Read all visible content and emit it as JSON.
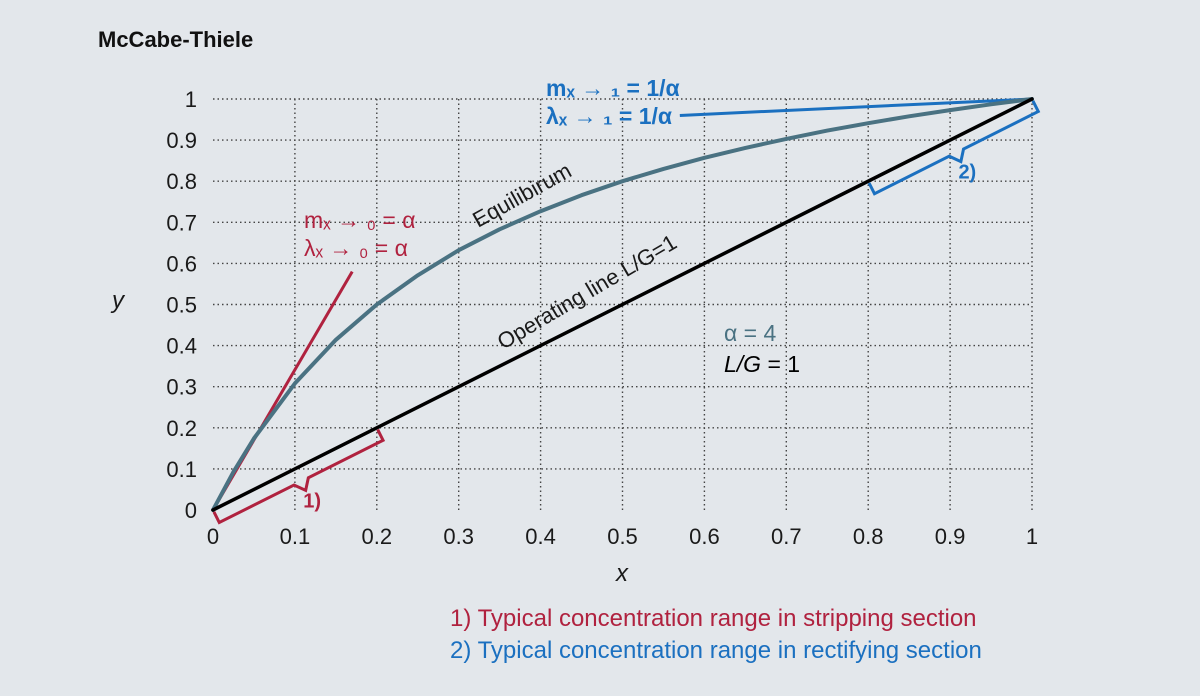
{
  "chart_data": {
    "type": "line",
    "title": "McCabe-Thiele",
    "xlabel": "x",
    "ylabel": "y",
    "xlim": [
      0,
      1
    ],
    "ylim": [
      0,
      1
    ],
    "grid": true,
    "x_ticks": [
      "0",
      "0.1",
      "0.2",
      "0.3",
      "0.4",
      "0.5",
      "0.6",
      "0.7",
      "0.8",
      "0.9",
      "1"
    ],
    "y_ticks": [
      "0",
      "0.1",
      "0.2",
      "0.3",
      "0.4",
      "0.5",
      "0.6",
      "0.7",
      "0.8",
      "0.9",
      "1"
    ],
    "alpha": 4,
    "L_over_G": 1,
    "series": [
      {
        "name": "Equilibirum",
        "color": "#4a7282",
        "x": [
          0,
          0.025,
          0.05,
          0.1,
          0.15,
          0.2,
          0.25,
          0.3,
          0.35,
          0.4,
          0.45,
          0.5,
          0.55,
          0.6,
          0.65,
          0.7,
          0.75,
          0.8,
          0.85,
          0.9,
          0.95,
          1
        ],
        "y": [
          0,
          0.093,
          0.174,
          0.308,
          0.414,
          0.5,
          0.571,
          0.632,
          0.683,
          0.727,
          0.766,
          0.8,
          0.83,
          0.857,
          0.881,
          0.903,
          0.923,
          0.941,
          0.958,
          0.973,
          0.987,
          1
        ]
      },
      {
        "name": "Operating line L/G=1",
        "color": "#000000",
        "x": [
          0,
          1
        ],
        "y": [
          0,
          1
        ]
      }
    ],
    "tangents": [
      {
        "color": "#b0223f",
        "x": [
          0,
          0.17
        ],
        "y": [
          0,
          0.58
        ]
      },
      {
        "color": "#1b70c0",
        "x": [
          0.57,
          1
        ],
        "y": [
          0.96,
          1
        ]
      }
    ],
    "brackets": [
      {
        "color": "#b0223f",
        "from": [
          0,
          0
        ],
        "to": [
          0.2,
          0.2
        ],
        "label": "1)"
      },
      {
        "color": "#1b70c0",
        "from": [
          0.8,
          0.8
        ],
        "to": [
          1,
          1
        ],
        "label": "2)"
      }
    ],
    "annotations": {
      "slope_low_line1": "mₓ → ₀ = α",
      "slope_low_line2": "λₓ → ₀ = α",
      "slope_high_line1": "mₓ → ₁ = 1/α",
      "slope_high_line2": "λₓ → ₁ = 1/α",
      "alpha_text": "α = 4",
      "lg_italic": "L/G",
      "lg_rest": " = 1"
    },
    "notes": [
      {
        "text": "1) Typical concentration range in stripping section",
        "color": "#b0223f"
      },
      {
        "text": "2) Typical concentration range in rectifying section",
        "color": "#1b70c0"
      }
    ],
    "colors": {
      "background": "#e3e7eb",
      "equilibrium": "#4a7282",
      "operating": "#000000",
      "stripping": "#b0223f",
      "rectifying": "#1b70c0"
    }
  }
}
